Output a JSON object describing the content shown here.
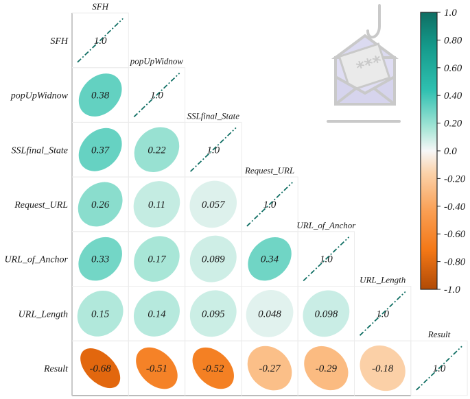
{
  "chart_data": {
    "type": "heatmap",
    "variables": [
      "SFH",
      "popUpWidnow",
      "SSLfinal_State",
      "Request_URL",
      "URL_of_Anchor",
      "URL_Length",
      "Result"
    ],
    "matrix": [
      [
        1.0,
        null,
        null,
        null,
        null,
        null,
        null
      ],
      [
        0.38,
        1.0,
        null,
        null,
        null,
        null,
        null
      ],
      [
        0.37,
        0.22,
        1.0,
        null,
        null,
        null,
        null
      ],
      [
        0.26,
        0.11,
        0.057,
        1.0,
        null,
        null,
        null
      ],
      [
        0.33,
        0.17,
        0.089,
        0.34,
        1.0,
        null,
        null
      ],
      [
        0.15,
        0.14,
        0.095,
        0.048,
        0.098,
        1.0,
        null
      ],
      [
        -0.68,
        -0.51,
        -0.52,
        -0.27,
        -0.29,
        -0.18,
        1.0
      ]
    ],
    "value_labels": [
      [
        "1.0"
      ],
      [
        "0.38",
        "1.0"
      ],
      [
        "0.37",
        "0.22",
        "1.0"
      ],
      [
        "0.26",
        "0.11",
        "0.057",
        "1.0"
      ],
      [
        "0.33",
        "0.17",
        "0.089",
        "0.34",
        "1.0"
      ],
      [
        "0.15",
        "0.14",
        "0.095",
        "0.048",
        "0.098",
        "1.0"
      ],
      [
        "-0.68",
        "-0.51",
        "-0.52",
        "-0.27",
        "-0.29",
        "-0.18",
        "1.0"
      ]
    ],
    "colorbar": {
      "range": [
        -1.0,
        1.0
      ],
      "tick_labels": [
        "1.0",
        "0.80",
        "0.60",
        "0.40",
        "0.20",
        "0.0",
        "-0.20",
        "-0.40",
        "-0.60",
        "-0.80",
        "-1.0"
      ],
      "positive_color": "#0f6e63",
      "mid_color": "#f7f7f7",
      "negative_color": "#b04a06"
    },
    "diagonal_style": "dash-dot line",
    "grid": true,
    "watermark_icon": "phishing-email-icon"
  }
}
